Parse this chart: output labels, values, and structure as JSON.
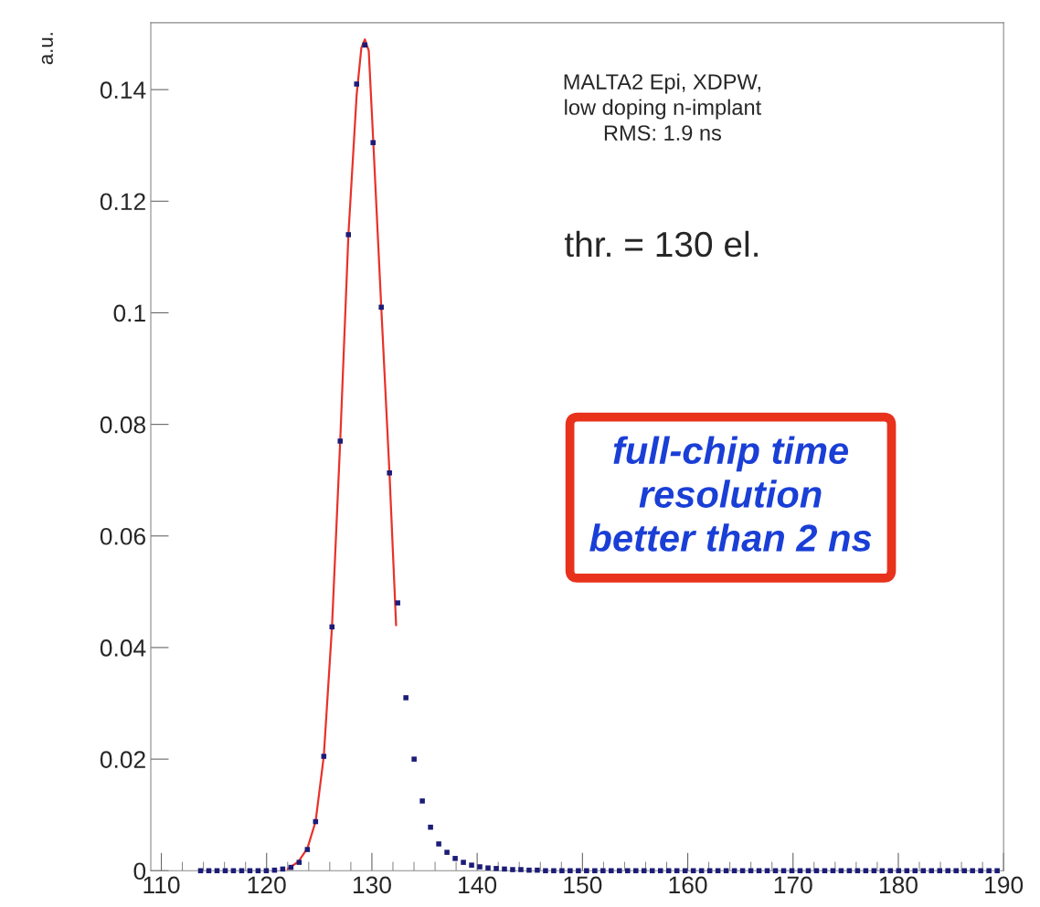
{
  "chart_data": {
    "type": "scatter",
    "ylabel": "a.u.",
    "xlim": [
      109,
      190
    ],
    "ylim": [
      0,
      0.152
    ],
    "xticks": [
      110,
      120,
      130,
      140,
      150,
      160,
      170,
      180,
      190
    ],
    "yticks": [
      0,
      {
        "value": 0.02,
        "label": "0.02"
      },
      {
        "value": 0.04,
        "label": "0.04"
      },
      {
        "value": 0.06,
        "label": "0.06"
      },
      {
        "value": 0.08,
        "label": "0.08"
      },
      {
        "value": 0.1,
        "label": "0.1"
      },
      {
        "value": 0.12,
        "label": "0.12"
      },
      {
        "value": 0.14,
        "label": "0.14"
      }
    ],
    "grid": false,
    "legend": false,
    "series": [
      {
        "color": "#1c1c78",
        "marker": "square",
        "x": [
          113.73,
          114.51,
          115.29,
          116.07,
          116.85,
          117.63,
          118.41,
          119.19,
          119.97,
          120.75,
          121.53,
          122.31,
          123.09,
          123.87,
          124.65,
          125.43,
          126.21,
          126.99,
          127.77,
          128.55,
          129.33,
          130.11,
          130.89,
          131.67,
          132.45,
          133.23,
          134.01,
          134.79,
          135.57,
          136.35,
          137.13,
          137.91,
          138.69,
          139.47,
          140.25,
          141.03,
          141.81,
          142.59,
          143.37,
          144.15,
          144.93,
          145.71,
          146.49,
          147.27,
          148.05,
          148.83,
          149.61,
          150.39,
          151.17,
          151.95,
          152.73,
          153.51,
          154.29,
          155.07,
          155.85,
          156.63,
          157.41,
          158.19,
          158.97,
          159.75,
          160.53,
          161.31,
          162.09,
          162.87,
          163.65,
          164.43,
          165.21,
          165.99,
          166.77,
          167.55,
          168.33,
          169.11,
          169.89,
          170.67,
          171.45,
          172.23,
          173.01,
          173.79,
          174.57,
          175.35,
          176.13,
          176.91,
          177.69,
          178.47,
          179.25,
          180.03,
          180.81,
          181.59,
          182.37,
          183.15,
          183.93,
          184.71,
          185.49,
          186.27,
          187.05,
          187.83,
          188.61,
          189.39
        ],
        "values": [
          0,
          0,
          0,
          0,
          0,
          0,
          0,
          0,
          0,
          0.0001,
          0.0003,
          0.0006,
          0.0015,
          0.0038,
          0.0088,
          0.0205,
          0.0437,
          0.077,
          0.114,
          0.141,
          0.148,
          0.1305,
          0.101,
          0.0713,
          0.048,
          0.031,
          0.02,
          0.0125,
          0.0078,
          0.0048,
          0.0033,
          0.0022,
          0.0015,
          0.001,
          0.0007,
          0.0005,
          0.0004,
          0.0003,
          0.0002,
          0.0002,
          0.0001,
          0.0001,
          0,
          0,
          0,
          0,
          0,
          0,
          0,
          0,
          0,
          0,
          0,
          0,
          0,
          0,
          0,
          0,
          0,
          0,
          0,
          0,
          0,
          0,
          0,
          0,
          0,
          0,
          0,
          0,
          0,
          0,
          0,
          0,
          0,
          0,
          0,
          0,
          0,
          0,
          0,
          0,
          0,
          0,
          0,
          0,
          0,
          0,
          0,
          0,
          0,
          0,
          0,
          0,
          0,
          0,
          0,
          0
        ]
      },
      {
        "type": "line",
        "color": "#e8322a",
        "marker": "none",
        "line_style": "solid",
        "x": [
          122.0,
          123.0,
          123.87,
          124.65,
          125.43,
          126.21,
          126.99,
          127.77,
          128.55,
          129.0,
          129.33,
          129.7,
          130.11,
          130.89,
          131.67,
          132.3
        ],
        "values": [
          0.0003,
          0.0016,
          0.004,
          0.0088,
          0.0205,
          0.0437,
          0.077,
          0.114,
          0.139,
          0.1475,
          0.149,
          0.147,
          0.1315,
          0.101,
          0.0713,
          0.044
        ]
      }
    ],
    "annotations": [
      "MALTA2 Epi, XDPW,\nlow doping n-implant\nRMS: 1.9 ns",
      "thr. = 130 el.",
      "full-chip time\nresolution\nbetter than 2 ns"
    ]
  }
}
